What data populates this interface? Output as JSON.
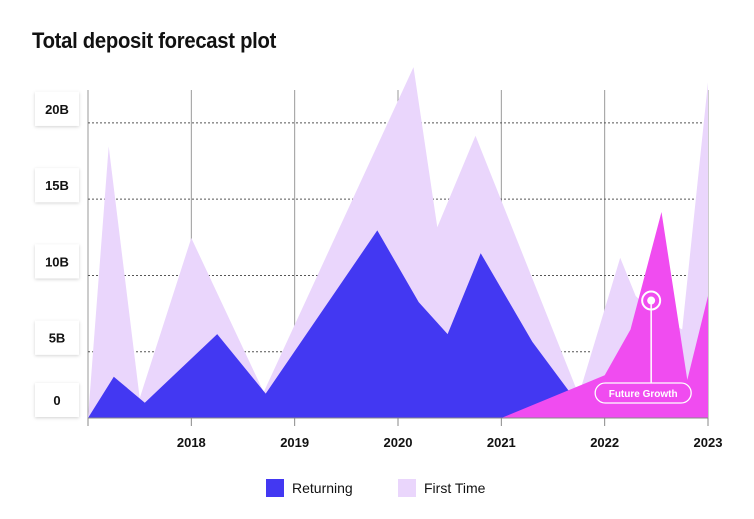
{
  "chart_data": {
    "type": "area",
    "title": "Total deposit forecast plot",
    "xlabel": "",
    "ylabel": "",
    "xlim": [
      2017.0,
      2023.0
    ],
    "ylim": [
      0,
      21.5
    ],
    "grid": true,
    "legend_placement": "bottom-center",
    "y_ticks": [
      {
        "value": 0,
        "label": "0"
      },
      {
        "value": 5,
        "label": "5B"
      },
      {
        "value": 10,
        "label": "10B"
      },
      {
        "value": 15,
        "label": "15B"
      },
      {
        "value": 20,
        "label": "20B"
      }
    ],
    "x_ticks": [
      {
        "value": 2018,
        "label": "2018"
      },
      {
        "value": 2019,
        "label": "2019"
      },
      {
        "value": 2020,
        "label": "2020"
      },
      {
        "value": 2021,
        "label": "2021"
      },
      {
        "value": 2022,
        "label": "2022"
      },
      {
        "value": 2023,
        "label": "2023"
      }
    ],
    "series": [
      {
        "name": "First Time",
        "color": "#ead6fc",
        "points": [
          [
            2017.0,
            0
          ],
          [
            2017.2,
            17.8
          ],
          [
            2017.5,
            1.3
          ],
          [
            2018.0,
            11.8
          ],
          [
            2018.7,
            1.7
          ],
          [
            2020.15,
            23.0
          ],
          [
            2020.38,
            12.5
          ],
          [
            2020.75,
            18.5
          ],
          [
            2021.75,
            1.5
          ],
          [
            2022.15,
            10.5
          ],
          [
            2022.3,
            8.0
          ],
          [
            2022.5,
            6.7
          ],
          [
            2022.75,
            5.8
          ],
          [
            2023.0,
            22.0
          ],
          [
            2023.0,
            0
          ]
        ]
      },
      {
        "name": "Returning",
        "color": "#4338f2",
        "points": [
          [
            2017.0,
            0
          ],
          [
            2017.25,
            2.7
          ],
          [
            2017.55,
            1.0
          ],
          [
            2018.25,
            5.5
          ],
          [
            2018.72,
            1.6
          ],
          [
            2019.8,
            12.3
          ],
          [
            2020.2,
            7.6
          ],
          [
            2020.48,
            5.5
          ],
          [
            2020.8,
            10.8
          ],
          [
            2021.3,
            5.0
          ],
          [
            2021.65,
            1.8
          ],
          [
            2022.1,
            2.8
          ],
          [
            2022.15,
            2.7
          ],
          [
            2023.0,
            0
          ]
        ]
      },
      {
        "name": "Future Growth",
        "color": "#f04cf0",
        "legend": false,
        "points": [
          [
            2021.0,
            0
          ],
          [
            2022.0,
            2.8
          ],
          [
            2022.25,
            5.8
          ],
          [
            2022.55,
            13.5
          ],
          [
            2022.8,
            2.5
          ],
          [
            2023.0,
            8.0
          ],
          [
            2023.0,
            0
          ]
        ]
      }
    ],
    "annotations": [
      {
        "label": "Future Growth",
        "x": 2022.45,
        "y": 7.7
      }
    ],
    "legend": [
      {
        "name": "Returning",
        "color": "#4338f2"
      },
      {
        "name": "First Time",
        "color": "#ead6fc"
      }
    ]
  }
}
